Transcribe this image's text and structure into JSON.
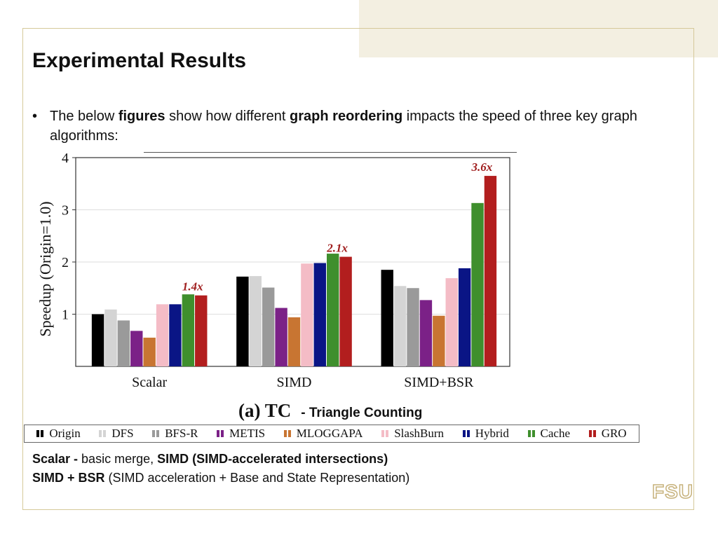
{
  "slide": {
    "title": "Experimental Results",
    "bullet": {
      "marker": "•",
      "text_1": "The below ",
      "bold_1": "figures",
      "text_2": " show how different ",
      "bold_2": "graph reordering",
      "text_3": " impacts the speed of three key graph algorithms:"
    },
    "subtitle_label": "(a) TC",
    "subtitle_suffix": "- Triangle Counting",
    "notes": {
      "line1_bold_a": "Scalar -",
      "line1_text_a": " basic merge, ",
      "line1_bold_b": "SIMD (SIMD-accelerated intersections)",
      "line2_bold": "SIMD + BSR",
      "line2_text": " (SIMD acceleration + Base and State Representation)"
    },
    "logo": "FSU"
  },
  "chart_data": {
    "type": "bar",
    "title": "",
    "xlabel": "",
    "ylabel": "Speedup (Origin=1.0)",
    "ylim": [
      0,
      4
    ],
    "yticks": [
      "1",
      "2",
      "3",
      "4"
    ],
    "grid": "horizontal",
    "categories": [
      "Scalar",
      "SIMD",
      "SIMD+BSR"
    ],
    "series": [
      {
        "name": "Origin",
        "color": "#000000",
        "values": [
          1.0,
          1.72,
          1.85
        ]
      },
      {
        "name": "DFS",
        "color": "#d4d4d4",
        "values": [
          1.09,
          1.73,
          1.54
        ]
      },
      {
        "name": "BFS-R",
        "color": "#9a9a9a",
        "values": [
          0.88,
          1.51,
          1.5
        ]
      },
      {
        "name": "METIS",
        "color": "#7b2187",
        "values": [
          0.68,
          1.12,
          1.27
        ]
      },
      {
        "name": "MLOGGAPA",
        "color": "#c87532",
        "values": [
          0.55,
          0.94,
          0.97
        ]
      },
      {
        "name": "SlashBurn",
        "color": "#f4bcc6",
        "values": [
          1.19,
          1.97,
          1.69
        ]
      },
      {
        "name": "Hybrid",
        "color": "#0a1585",
        "values": [
          1.19,
          1.98,
          1.88
        ]
      },
      {
        "name": "Cache",
        "color": "#3f8f2d",
        "values": [
          1.38,
          2.16,
          3.13
        ]
      },
      {
        "name": "GRO",
        "color": "#b21e1e",
        "values": [
          1.36,
          2.1,
          3.65
        ]
      }
    ],
    "annotations": [
      "1.4x",
      "2.1x",
      "3.6x"
    ],
    "annotation_color": "#a01f1f",
    "legend": "bottom"
  }
}
